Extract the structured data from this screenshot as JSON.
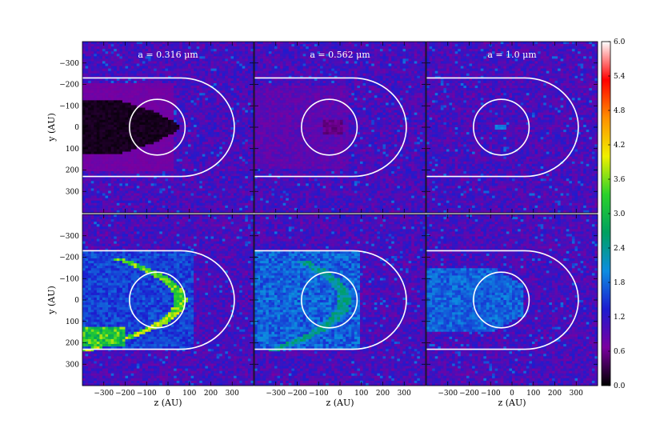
{
  "chart_data": {
    "type": "heatmap",
    "panels": [
      {
        "title": "a = 0.316 μm",
        "row": 0,
        "col": 0
      },
      {
        "title": "a = 0.562 μm",
        "row": 0,
        "col": 1
      },
      {
        "title": "a = 1.0 μm",
        "row": 0,
        "col": 2
      },
      {
        "title": "",
        "row": 1,
        "col": 0
      },
      {
        "title": "",
        "row": 1,
        "col": 1
      },
      {
        "title": "",
        "row": 1,
        "col": 2
      }
    ],
    "xlabel": "z (AU)",
    "ylabel": "y (AU)",
    "xlim": [
      -400,
      400
    ],
    "ylim": [
      -400,
      400
    ],
    "y_inverted": true,
    "xticks": [
      -300,
      -200,
      -100,
      0,
      100,
      200,
      300
    ],
    "xtick_labels": [
      "−300",
      "−200",
      "−100",
      "0",
      "100",
      "200",
      "300"
    ],
    "yticks": [
      -300,
      -200,
      -100,
      0,
      100,
      200,
      300
    ],
    "ytick_labels": [
      "−300",
      "−200",
      "−100",
      "0",
      "100",
      "200",
      "300"
    ],
    "colorbar": {
      "min": 0.0,
      "max": 6.0,
      "ticks": [
        0.0,
        0.6,
        1.2,
        1.8,
        2.4,
        3.0,
        3.6,
        4.2,
        4.8,
        5.4,
        6.0
      ],
      "tick_labels": [
        "0.0",
        "0.6",
        "1.2",
        "1.8",
        "2.4",
        "3.0",
        "3.6",
        "4.2",
        "4.8",
        "5.4",
        "6.0"
      ],
      "colors": [
        "#000000",
        "#7a00a0",
        "#1c1cd0",
        "#0d8de0",
        "#00a060",
        "#2ad22a",
        "#f0f000",
        "#ff9000",
        "#ff0000",
        "#ffffff"
      ]
    },
    "contours": [
      {
        "name": "inner circle",
        "center_z": -50,
        "center_y": 0,
        "radius": 130
      },
      {
        "name": "outer boundary",
        "apex_z": 310,
        "center_z": 60,
        "half_width_y": 230
      }
    ]
  }
}
